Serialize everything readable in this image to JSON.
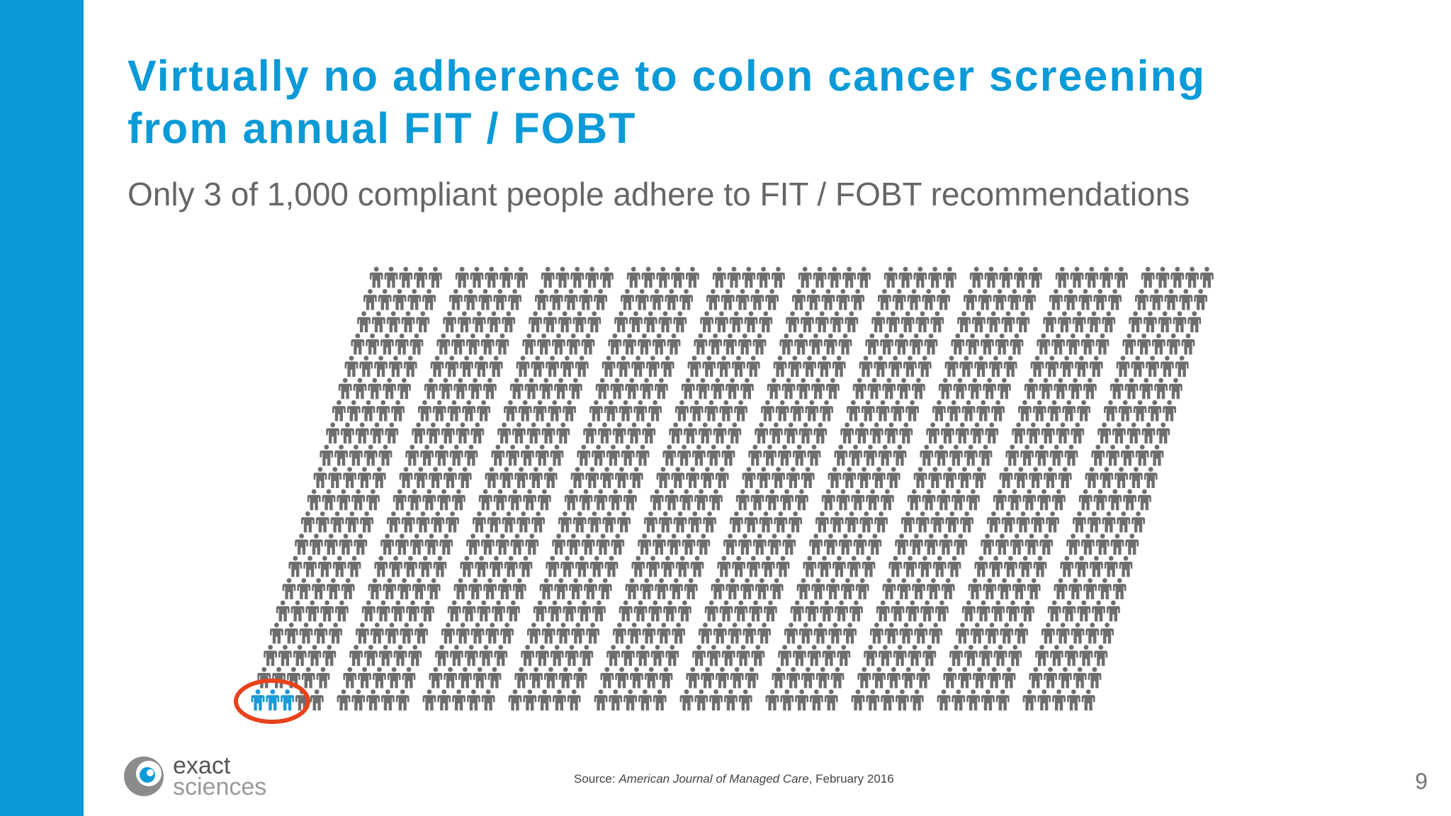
{
  "slide": {
    "title_line1": "Virtually no adherence to colon cancer screening",
    "title_line2": "from annual FIT / FOBT",
    "subtitle": "Only 3 of 1,000 compliant people adhere to FIT / FOBT recommendations",
    "source_prefix": "Source: ",
    "source_journal": "American Journal of Managed Care",
    "source_date": ", February 2016",
    "page_number": "9"
  },
  "logo": {
    "word1": "exact",
    "word2": "sciences"
  },
  "pictogram": {
    "total_people": 1000,
    "highlighted_people": 3,
    "highlight_circle_color": "#e8421c"
  },
  "colors": {
    "accent": "#0a9ad8",
    "title": "#0a9ad8",
    "subtitle": "#666666",
    "person_default": "#6d6e70",
    "person_highlight": "#1a9ad8",
    "page_number": "#777777"
  },
  "icons": {
    "person": "person-icon",
    "logo": "exact-sciences-logo-icon"
  }
}
